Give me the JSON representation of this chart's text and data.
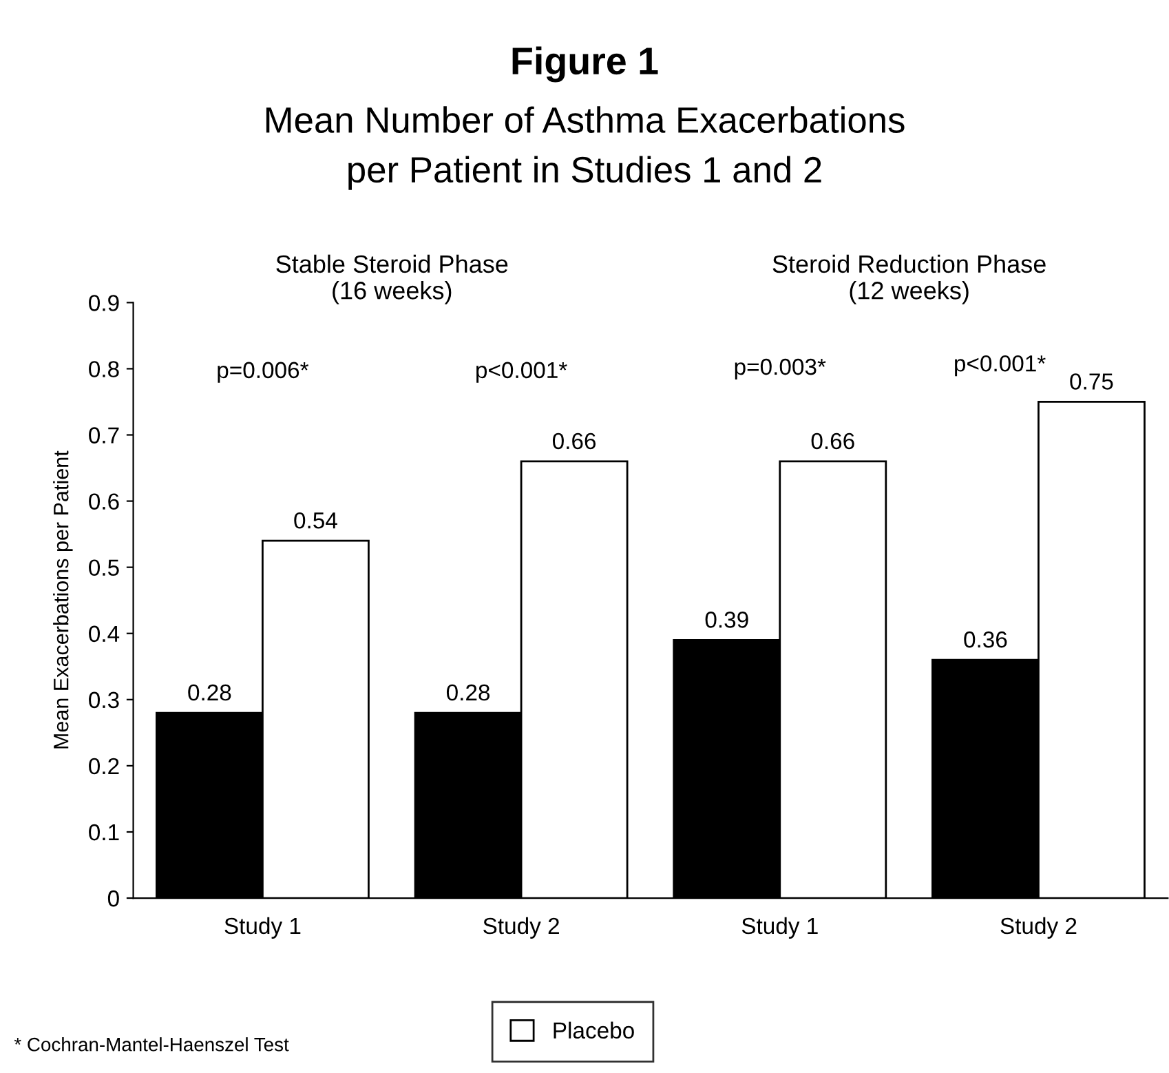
{
  "chart_data": {
    "type": "bar",
    "title": "Figure 1",
    "subtitle": "Mean Number of Asthma Exacerbations\nper Patient in Studies 1 and 2",
    "ylabel": "Mean Exacerbations per Patient",
    "categories": [
      "Study 1",
      "Study 2",
      "Study 1",
      "Study 2"
    ],
    "series": [
      {
        "color": "#000000",
        "values": [
          0.28,
          0.28,
          0.39,
          0.36
        ]
      },
      {
        "name": "Placebo",
        "color": "#ffffff",
        "values": [
          0.54,
          0.66,
          0.66,
          0.75
        ]
      }
    ],
    "ylim": [
      0,
      0.9
    ],
    "yticks": [
      0,
      0.1,
      0.2,
      0.3,
      0.4,
      0.5,
      0.6,
      0.7,
      0.8,
      0.9
    ],
    "data_labels": true,
    "grid": false,
    "legend": "bottom",
    "annotations": [
      "Stable Steroid Phase",
      "(16 weeks)",
      "Steroid Reduction Phase",
      "(12 weeks)",
      "p=0.006*",
      "p<0.001*",
      "p=0.003*",
      "p<0.001*",
      "* Cochran-Mantel-Haenszel Test"
    ]
  }
}
